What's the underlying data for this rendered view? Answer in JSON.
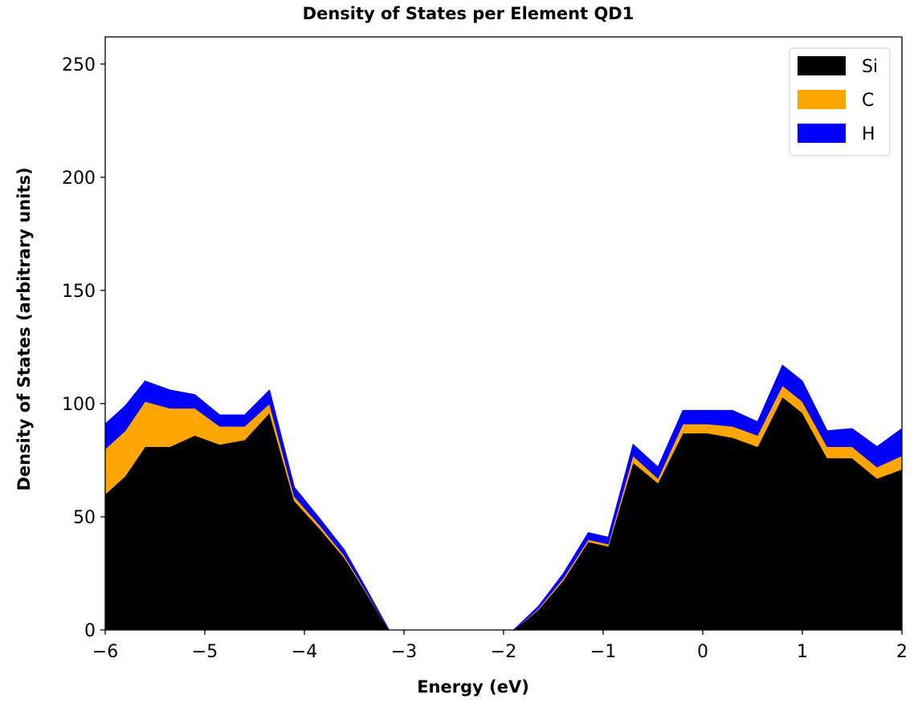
{
  "chart_data": {
    "type": "area",
    "stacked": true,
    "title": "Density of States per Element QD1",
    "xlabel": "Energy (eV)",
    "ylabel": "Density of States (arbitrary units)",
    "xlim": [
      -6,
      2
    ],
    "ylim": [
      0,
      262
    ],
    "xticks": [
      -6,
      -5,
      -4,
      -3,
      -2,
      -1,
      0,
      1,
      2
    ],
    "xtick_labels": [
      "−6",
      "−5",
      "−4",
      "−3",
      "−2",
      "−1",
      "0",
      "1",
      "2"
    ],
    "yticks": [
      0,
      50,
      100,
      150,
      200,
      250
    ],
    "ytick_labels": [
      "0",
      "50",
      "100",
      "150",
      "200",
      "250"
    ],
    "legend_position": "top-right",
    "grid": false,
    "x": [
      -6.0,
      -5.8,
      -5.6,
      -5.35,
      -5.1,
      -4.85,
      -4.6,
      -4.35,
      -4.1,
      -3.85,
      -3.6,
      -3.4,
      -3.15,
      -2.9,
      -2.65,
      -2.4,
      -2.15,
      -1.9,
      -1.65,
      -1.4,
      -1.15,
      -0.95,
      -0.7,
      -0.45,
      -0.2,
      0.05,
      0.3,
      0.55,
      0.8,
      1.0,
      1.25,
      1.5,
      1.75,
      2.0
    ],
    "series": [
      {
        "name": "Si",
        "color": "#000000",
        "values": [
          60,
          68,
          81,
          81,
          86,
          82,
          84,
          96,
          57,
          45,
          32,
          18,
          0,
          0,
          0,
          0,
          0,
          0,
          9,
          22,
          39,
          37,
          74,
          65,
          87,
          87,
          85,
          81,
          103,
          96,
          76,
          76,
          67,
          71
        ]
      },
      {
        "name": "C",
        "color": "#ffa500",
        "values": [
          20,
          20,
          20,
          17,
          12,
          8,
          6,
          4,
          2,
          1.5,
          1,
          0.5,
          0,
          0,
          0,
          0,
          0,
          0,
          0.5,
          1,
          1,
          1,
          3,
          2,
          4,
          4,
          5,
          5,
          5,
          5,
          5,
          5,
          5,
          6
        ]
      },
      {
        "name": "H",
        "color": "#0000ff",
        "values": [
          11,
          11,
          9,
          8,
          6,
          5,
          5,
          6,
          4,
          3,
          2.5,
          1.5,
          0,
          0,
          0,
          0,
          0,
          0,
          1,
          2,
          3,
          3,
          5,
          5,
          6,
          6,
          7,
          6,
          9,
          9,
          7,
          8,
          9,
          12
        ]
      }
    ]
  }
}
